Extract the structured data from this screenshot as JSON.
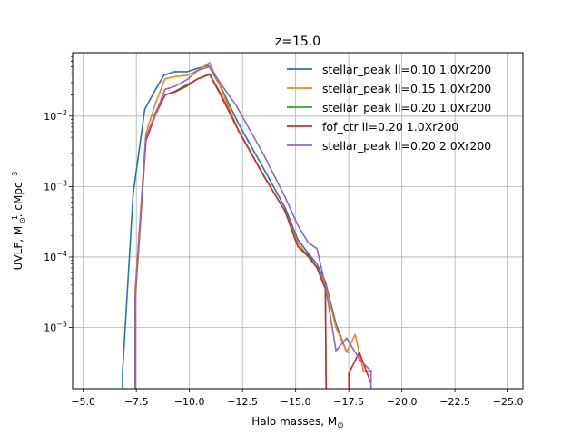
{
  "chart_data": {
    "type": "line",
    "title": "z=15.0",
    "xlabel": "Halo masses, M",
    "xlabel_sub": "⊙",
    "ylabel": "UVLF, M",
    "ylabel_sup1": "−1",
    "ylabel_sub1": "⊙",
    "ylabel_mid": ". cMpc",
    "ylabel_sup2": "−3",
    "xlim": [
      -4.5,
      -25.7
    ],
    "ylim_log10": [
      -5.87,
      -1.1
    ],
    "y_scale": "log",
    "grid": true,
    "legend_position": "top-right",
    "x_ticks": [
      {
        "value": -5.0,
        "label": "−5.0"
      },
      {
        "value": -7.5,
        "label": "−7.5"
      },
      {
        "value": -10.0,
        "label": "−10.0"
      },
      {
        "value": -12.5,
        "label": "−12.5"
      },
      {
        "value": -15.0,
        "label": "−15.0"
      },
      {
        "value": -17.5,
        "label": "−17.5"
      },
      {
        "value": -20.0,
        "label": "−20.0"
      },
      {
        "value": -22.5,
        "label": "−22.5"
      },
      {
        "value": -25.0,
        "label": "−25.0"
      }
    ],
    "y_ticks": [
      {
        "exp": -2,
        "label_base": "10",
        "label_exp": "−2"
      },
      {
        "exp": -3,
        "label_base": "10",
        "label_exp": "−3"
      },
      {
        "exp": -4,
        "label_base": "10",
        "label_exp": "−4"
      },
      {
        "exp": -5,
        "label_base": "10",
        "label_exp": "−5"
      }
    ],
    "series": [
      {
        "name": "stellar_peak ll=0.10 1.0Xr200",
        "color": "#1f77b4",
        "points": [
          [
            -6.85,
            -6.5
          ],
          [
            -6.85,
            -5.63
          ],
          [
            -7.35,
            -3.1
          ],
          [
            -7.9,
            -1.9
          ],
          [
            -8.35,
            -1.65
          ],
          [
            -8.8,
            -1.42
          ],
          [
            -9.3,
            -1.37
          ],
          [
            -9.9,
            -1.37
          ],
          [
            -10.4,
            -1.32
          ],
          [
            -10.9,
            -1.28
          ],
          [
            -11.5,
            -1.6
          ],
          [
            -12.3,
            -2.1
          ],
          [
            -13.5,
            -2.75
          ],
          [
            -14.5,
            -3.3
          ],
          [
            -15.1,
            -3.75
          ],
          [
            -15.6,
            -3.95
          ],
          [
            -16.0,
            -4.1
          ],
          [
            -16.4,
            -4.35
          ],
          [
            -16.9,
            -4.95
          ],
          [
            -17.4,
            -5.35
          ],
          [
            -17.5,
            -5.35
          ]
        ]
      },
      {
        "name": "stellar_peak ll=0.15 1.0Xr200",
        "color": "#ff7f0e",
        "points": [
          [
            -7.45,
            -6.5
          ],
          [
            -7.45,
            -4.45
          ],
          [
            -7.95,
            -2.25
          ],
          [
            -8.4,
            -1.82
          ],
          [
            -8.85,
            -1.47
          ],
          [
            -9.3,
            -1.44
          ],
          [
            -9.9,
            -1.42
          ],
          [
            -10.4,
            -1.35
          ],
          [
            -10.95,
            -1.24
          ],
          [
            -11.5,
            -1.62
          ],
          [
            -12.3,
            -2.2
          ],
          [
            -13.5,
            -2.85
          ],
          [
            -14.5,
            -3.35
          ],
          [
            -15.1,
            -3.8
          ],
          [
            -15.6,
            -4.0
          ],
          [
            -16.0,
            -4.15
          ],
          [
            -16.4,
            -4.4
          ],
          [
            -16.9,
            -5.0
          ],
          [
            -17.4,
            -5.35
          ],
          [
            -17.8,
            -5.1
          ],
          [
            -18.2,
            -5.62
          ],
          [
            -18.6,
            -5.62
          ]
        ]
      },
      {
        "name": "stellar_peak ll=0.20 1.0Xr200",
        "color": "#2ca02c",
        "points": [
          [
            -7.45,
            -6.5
          ],
          [
            -7.45,
            -4.6
          ],
          [
            -7.95,
            -2.35
          ],
          [
            -8.4,
            -1.95
          ],
          [
            -8.85,
            -1.7
          ],
          [
            -9.3,
            -1.65
          ],
          [
            -9.9,
            -1.55
          ],
          [
            -10.4,
            -1.47
          ],
          [
            -10.95,
            -1.4
          ],
          [
            -11.5,
            -1.7
          ],
          [
            -12.3,
            -2.2
          ],
          [
            -13.5,
            -2.85
          ],
          [
            -14.5,
            -3.35
          ],
          [
            -15.1,
            -3.85
          ],
          [
            -15.6,
            -4.0
          ],
          [
            -16.0,
            -4.15
          ],
          [
            -16.4,
            -4.45
          ],
          [
            -16.45,
            -6.5
          ]
        ]
      },
      {
        "name": "fof_ctr ll=0.20 1.0Xr200",
        "color": "#d62728",
        "points": [
          [
            -7.45,
            -6.5
          ],
          [
            -7.45,
            -4.55
          ],
          [
            -7.95,
            -2.35
          ],
          [
            -8.4,
            -1.98
          ],
          [
            -8.85,
            -1.7
          ],
          [
            -9.3,
            -1.66
          ],
          [
            -9.9,
            -1.57
          ],
          [
            -10.4,
            -1.47
          ],
          [
            -10.95,
            -1.41
          ],
          [
            -11.5,
            -1.72
          ],
          [
            -12.3,
            -2.2
          ],
          [
            -13.5,
            -2.85
          ],
          [
            -14.5,
            -3.35
          ],
          [
            -15.1,
            -3.85
          ],
          [
            -15.6,
            -3.98
          ],
          [
            -16.0,
            -4.15
          ],
          [
            -16.4,
            -4.45
          ],
          [
            -16.45,
            -6.5
          ],
          [
            -17.5,
            -6.5
          ],
          [
            -17.5,
            -5.65
          ],
          [
            -18.0,
            -5.35
          ],
          [
            -18.55,
            -5.8
          ],
          [
            -18.55,
            -6.5
          ]
        ]
      },
      {
        "name": "stellar_peak ll=0.20 2.0Xr200",
        "color": "#9467bd",
        "points": [
          [
            -7.45,
            -6.5
          ],
          [
            -7.45,
            -4.55
          ],
          [
            -7.95,
            -2.3
          ],
          [
            -8.4,
            -1.97
          ],
          [
            -8.85,
            -1.62
          ],
          [
            -9.3,
            -1.58
          ],
          [
            -9.9,
            -1.48
          ],
          [
            -10.4,
            -1.35
          ],
          [
            -10.95,
            -1.3
          ],
          [
            -11.5,
            -1.55
          ],
          [
            -12.2,
            -1.85
          ],
          [
            -13.5,
            -2.55
          ],
          [
            -14.5,
            -3.15
          ],
          [
            -15.1,
            -3.55
          ],
          [
            -15.6,
            -3.8
          ],
          [
            -16.0,
            -3.88
          ],
          [
            -16.4,
            -4.4
          ],
          [
            -16.9,
            -5.33
          ],
          [
            -17.4,
            -5.15
          ],
          [
            -18.0,
            -5.45
          ],
          [
            -18.55,
            -5.62
          ],
          [
            -18.55,
            -6.5
          ]
        ]
      }
    ]
  }
}
